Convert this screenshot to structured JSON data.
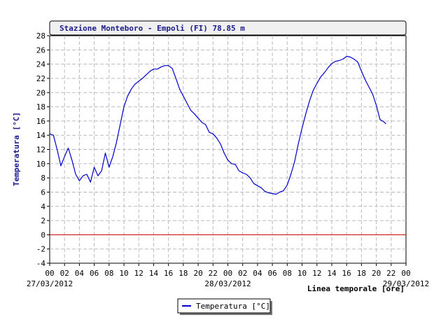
{
  "chart_data": {
    "type": "line",
    "title": "Stazione Monteboro - Empoli (FI) 78.85 m",
    "ylabel": "Temperatura [°C]",
    "xlabel": "Linea temporale [ore]",
    "ylim": [
      -4,
      28
    ],
    "yticks": [
      "-4",
      "-2",
      "0",
      "2",
      "4",
      "6",
      "8",
      "10",
      "12",
      "14",
      "16",
      "18",
      "20",
      "22",
      "24",
      "26",
      "28"
    ],
    "xlim": [
      0,
      48
    ],
    "xticks": [
      "00",
      "02",
      "04",
      "06",
      "08",
      "10",
      "12",
      "14",
      "16",
      "18",
      "20",
      "22",
      "00",
      "02",
      "04",
      "06",
      "08",
      "10",
      "12",
      "14",
      "16",
      "18",
      "20",
      "22",
      "00"
    ],
    "date_labels": [
      {
        "label": "27/03/2012",
        "hour": 0
      },
      {
        "label": "28/03/2012",
        "hour": 24
      },
      {
        "label": "29/03/2012",
        "hour": 48
      }
    ],
    "grid": true,
    "reference_line": {
      "y": 0,
      "color": "#cc0000"
    },
    "legend_position": "bottom-center",
    "colors": {
      "line": "#0000cc",
      "title_text": "#1a1a8c",
      "grid": "#bbbbbb"
    },
    "series": [
      {
        "name": "Temperatura [°C]",
        "x": [
          0,
          0.5,
          1,
          1.5,
          2,
          2.5,
          3,
          3.5,
          4,
          4.5,
          5,
          5.5,
          6,
          6.5,
          7,
          7.5,
          8,
          8.5,
          9,
          9.5,
          10,
          10.5,
          11,
          11.5,
          12,
          12.5,
          13,
          13.5,
          14,
          14.5,
          15,
          15.5,
          16,
          16.5,
          17,
          17.5,
          18,
          18.5,
          19,
          19.5,
          20,
          20.5,
          21,
          21.5,
          22,
          22.5,
          23,
          23.5,
          24,
          24.5,
          25,
          25.5,
          26,
          26.5,
          27,
          27.5,
          28,
          28.5,
          29,
          29.5,
          30,
          30.5,
          31,
          31.5,
          32,
          32.5,
          33,
          33.5,
          34,
          34.5,
          35,
          35.5,
          36,
          36.5,
          37,
          37.5,
          38,
          38.5,
          39,
          39.5,
          40,
          40.5,
          41,
          41.5,
          42,
          42.5,
          43,
          43.5,
          44,
          44.5,
          45,
          45.3
        ],
        "values": [
          14.2,
          14.0,
          12.0,
          9.7,
          11.0,
          12.2,
          10.5,
          8.5,
          7.6,
          8.3,
          8.5,
          7.4,
          9.5,
          8.3,
          9.0,
          11.5,
          9.5,
          11.0,
          13.0,
          15.5,
          18.0,
          19.5,
          20.5,
          21.2,
          21.6,
          22.0,
          22.5,
          23.0,
          23.3,
          23.3,
          23.6,
          23.8,
          23.8,
          23.4,
          22.0,
          20.5,
          19.5,
          18.5,
          17.5,
          17.0,
          16.4,
          15.8,
          15.5,
          14.4,
          14.2,
          13.6,
          12.8,
          11.5,
          10.5,
          10.0,
          9.9,
          9.0,
          8.7,
          8.5,
          8.0,
          7.2,
          6.9,
          6.6,
          6.1,
          5.9,
          5.8,
          5.7,
          6.0,
          6.2,
          7.0,
          8.5,
          10.3,
          12.8,
          15.0,
          17.0,
          18.8,
          20.3,
          21.3,
          22.2,
          22.8,
          23.5,
          24.1,
          24.4,
          24.5,
          24.7,
          25.1,
          25.0,
          24.7,
          24.3,
          23.0,
          21.8,
          20.8,
          19.8,
          18.2,
          16.2,
          15.9,
          15.6
        ]
      }
    ]
  }
}
